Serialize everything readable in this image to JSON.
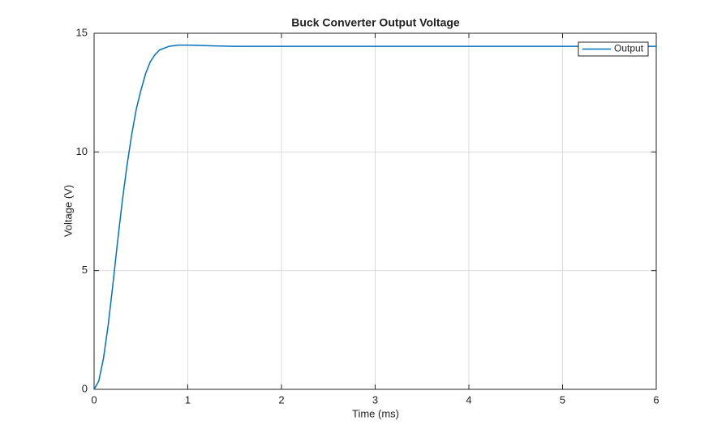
{
  "chart_data": {
    "type": "line",
    "title": "Buck Converter Output Voltage",
    "x_label": "Time (ms)",
    "y_label": "Voltage (V)",
    "x": [
      0,
      0.05,
      0.1,
      0.15,
      0.2,
      0.25,
      0.3,
      0.35,
      0.4,
      0.45,
      0.5,
      0.55,
      0.6,
      0.65,
      0.7,
      0.8,
      0.9,
      1.0,
      1.1,
      1.25,
      1.5,
      2,
      3,
      4,
      5,
      6
    ],
    "series": [
      {
        "name": "Output",
        "color": "#0072bd",
        "values": [
          0,
          0.35,
          1.3,
          2.7,
          4.4,
          6.2,
          7.9,
          9.4,
          10.7,
          11.8,
          12.6,
          13.3,
          13.8,
          14.1,
          14.3,
          14.45,
          14.5,
          14.5,
          14.49,
          14.47,
          14.45,
          14.45,
          14.45,
          14.45,
          14.45,
          14.45
        ]
      }
    ],
    "xlim": [
      0,
      6
    ],
    "xticks": [
      0,
      1,
      2,
      3,
      4,
      5,
      6
    ],
    "ylim": [
      0,
      15
    ],
    "yticks": [
      0,
      5,
      10,
      15
    ],
    "grid": true,
    "legend": "northeast"
  }
}
